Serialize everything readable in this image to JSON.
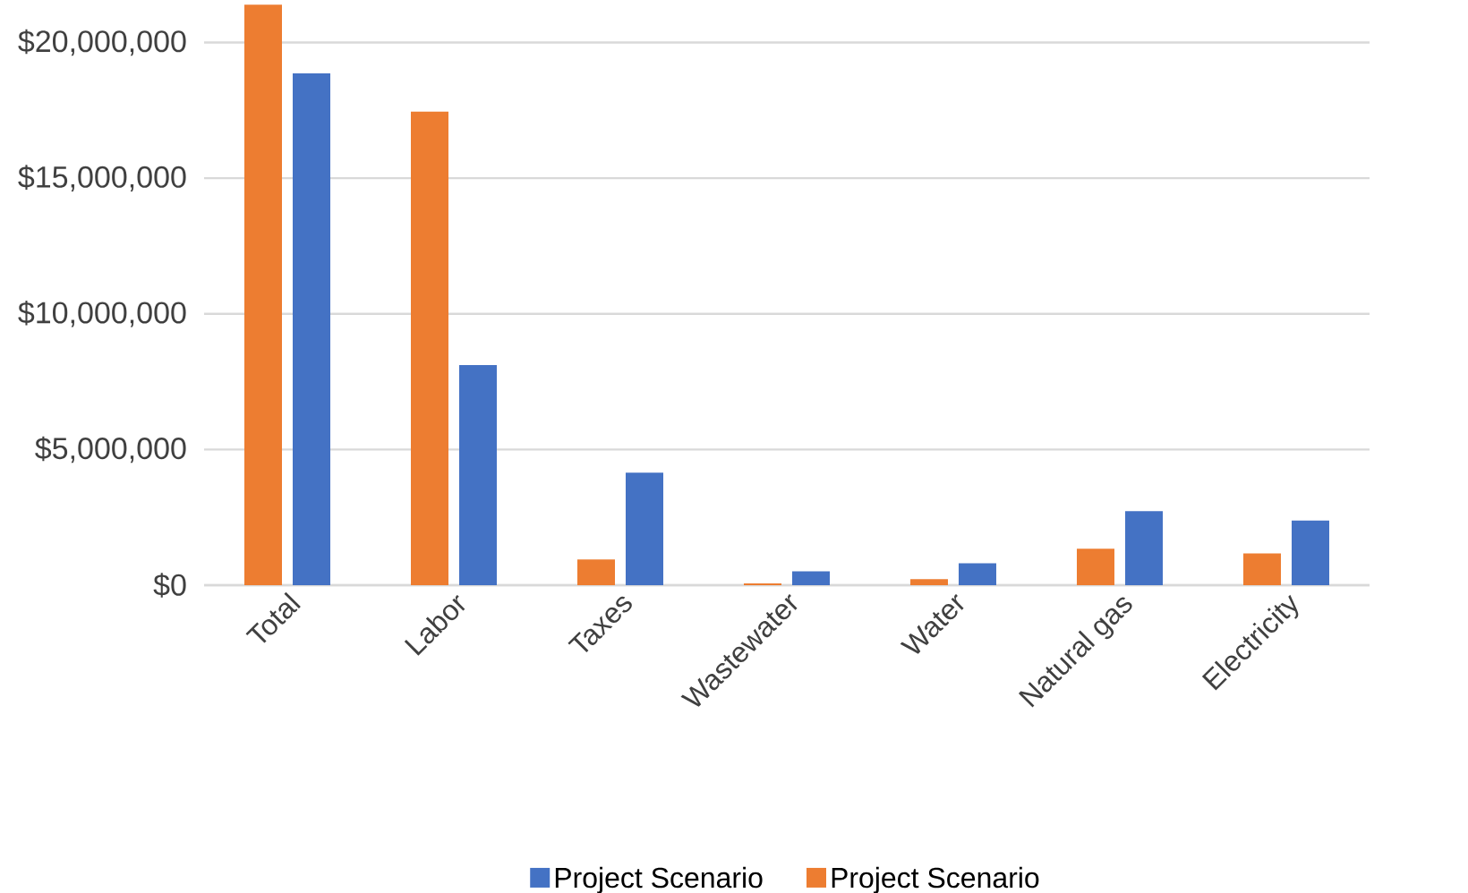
{
  "chart_data": {
    "type": "bar",
    "categories": [
      "Total",
      "Labor",
      "Taxes",
      "Wastewater",
      "Water",
      "Natural gas",
      "Electricity"
    ],
    "series": [
      {
        "name": "Project Scenario",
        "color": "#ed7d31",
        "values": [
          21390000,
          17450000,
          950000,
          70000,
          220000,
          1340000,
          1170000
        ]
      },
      {
        "name": "Project Scenario",
        "color": "#4472c4",
        "values": [
          18860000,
          8110000,
          4150000,
          510000,
          810000,
          2730000,
          2380000
        ]
      }
    ],
    "ylim": [
      0,
      21500000
    ],
    "yticks": [
      {
        "value": 0,
        "label": "$0"
      },
      {
        "value": 5000000,
        "label": "$5,000,000"
      },
      {
        "value": 10000000,
        "label": "$10,000,000"
      },
      {
        "value": 15000000,
        "label": "$15,000,000"
      },
      {
        "value": 20000000,
        "label": "$20,000,000"
      }
    ],
    "grid": "y",
    "legend": "bottom"
  }
}
